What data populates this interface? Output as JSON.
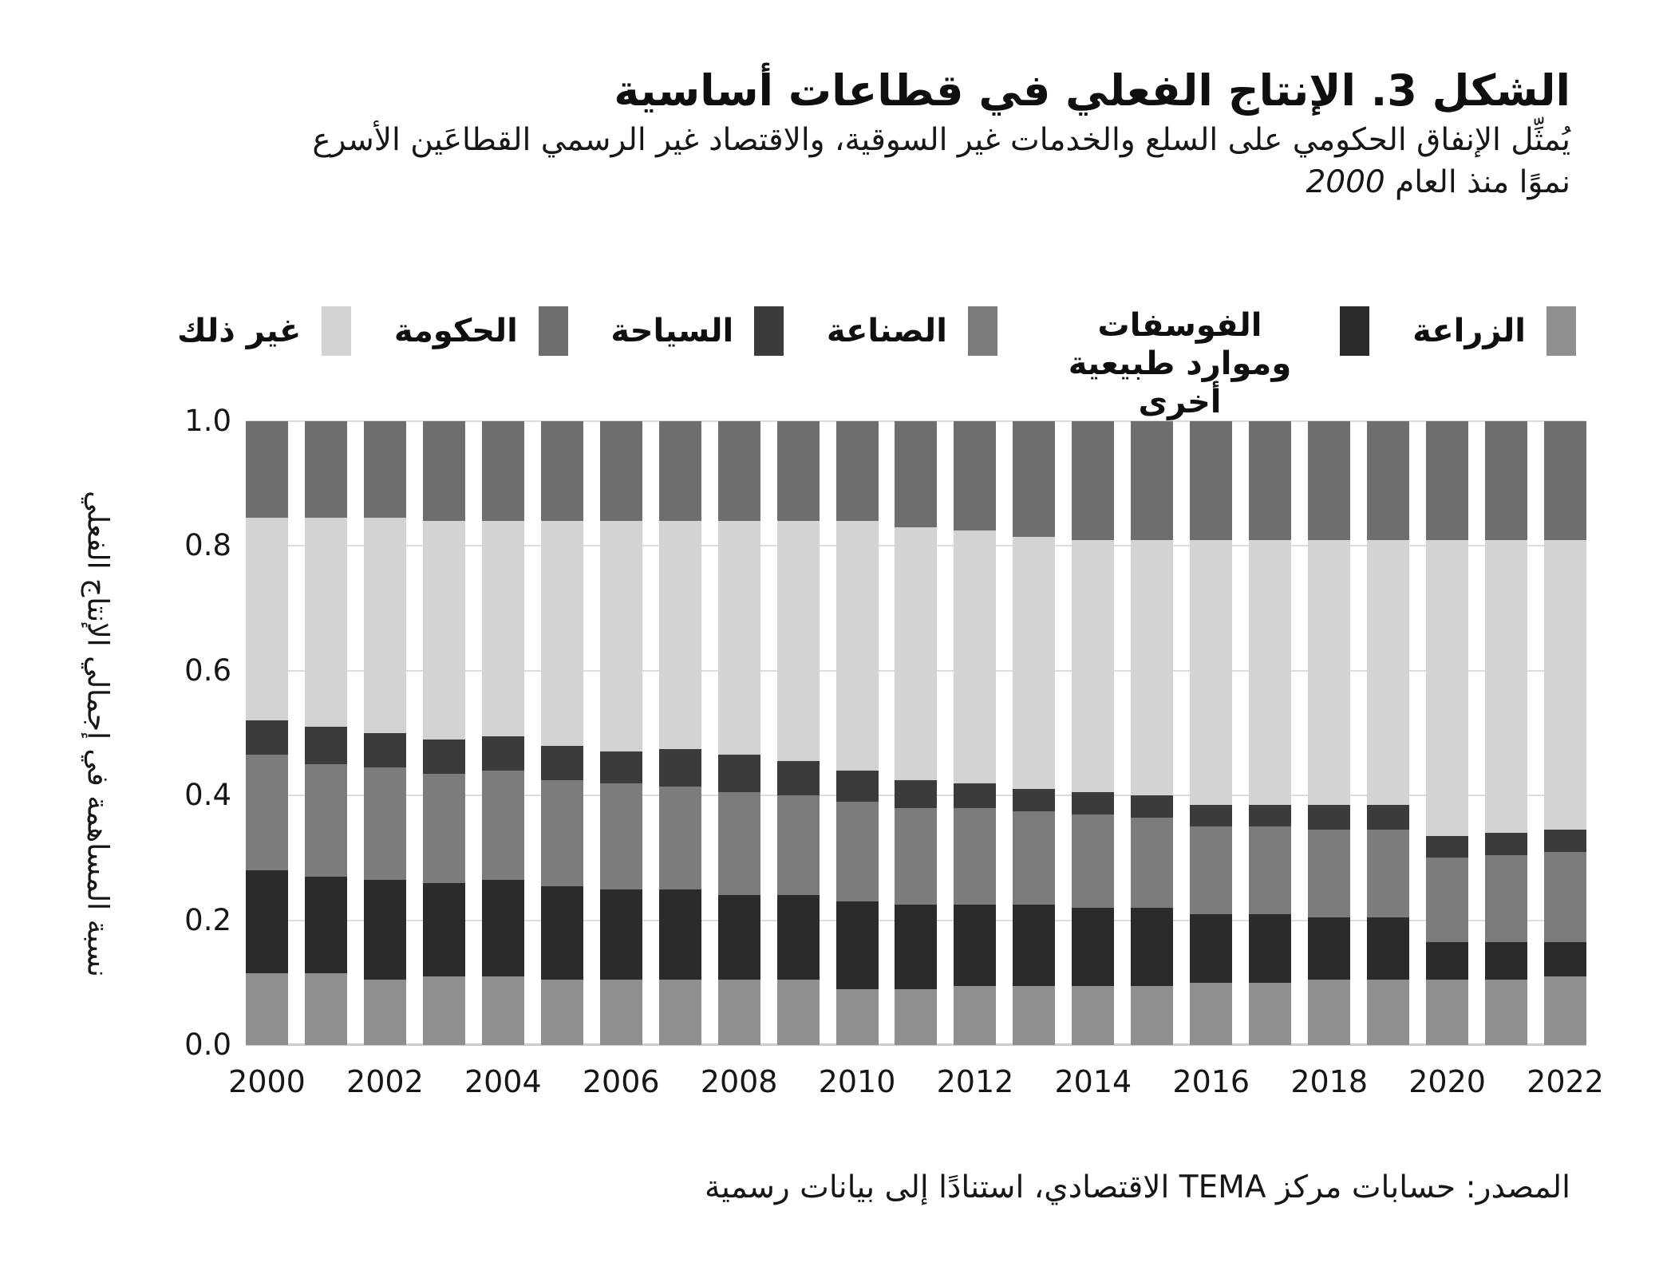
{
  "figure": {
    "title": "الشكل 3. الإنتاج الفعلي في قطاعات أساسية",
    "subtitle_line1": "يُمثِّل الإنفاق الحكومي على السلع والخدمات غير السوقية، والاقتصاد غير الرسمي القطاعَين الأسرع",
    "subtitle_line2": "نموًا منذ العام",
    "subtitle_year": "2000",
    "y_axis_label": "نسبة المساهمة في إجمالي الإنتاج الفعلي",
    "source": "المصدر: حسابات مركز TEMA الاقتصادي، استنادًا إلى بيانات رسمية",
    "background_color": "#ffffff",
    "gridline_color": "#dddddd"
  },
  "legend": [
    {
      "key": "agriculture",
      "label": "الزراعة",
      "color": "#8F8F8F",
      "multiline": false
    },
    {
      "key": "phosphates",
      "label": "الفوسفات وموارد طبيعية أخرى",
      "color": "#2B2B2B",
      "multiline": true
    },
    {
      "key": "industry",
      "label": "الصناعة",
      "color": "#7C7C7C",
      "multiline": false
    },
    {
      "key": "tourism",
      "label": "السياحة",
      "color": "#3B3B3B",
      "multiline": false
    },
    {
      "key": "government",
      "label": "الحكومة",
      "color": "#6E6E6E",
      "multiline": false
    },
    {
      "key": "other",
      "label": "غير ذلك",
      "color": "#D3D3D3",
      "multiline": false
    }
  ],
  "chart_data": {
    "type": "bar",
    "stacked": true,
    "title": "الشكل 3. الإنتاج الفعلي في قطاعات أساسية",
    "xlabel": "",
    "ylabel": "نسبة المساهمة في إجمالي الإنتاج الفعلي",
    "ylim": [
      0,
      1
    ],
    "grid": true,
    "legend_position": "top",
    "x": [
      2000,
      2001,
      2002,
      2003,
      2004,
      2005,
      2006,
      2007,
      2008,
      2009,
      2010,
      2011,
      2012,
      2013,
      2014,
      2015,
      2016,
      2017,
      2018,
      2019,
      2020,
      2021,
      2022
    ],
    "xtick_labels": [
      "2000",
      "2002",
      "2004",
      "2006",
      "2008",
      "2010",
      "2012",
      "2014",
      "2016",
      "2018",
      "2020",
      "2022"
    ],
    "yticks": [
      "0.0",
      "0.2",
      "0.4",
      "0.6",
      "0.8",
      "1.0"
    ],
    "ytick_values": [
      0,
      0.2,
      0.4,
      0.6,
      0.8,
      1.0
    ],
    "stack_order_bottom_to_top": [
      "الزراعة",
      "الفوسفات وموارد طبيعية أخرى",
      "الصناعة",
      "السياحة",
      "غير ذلك",
      "الحكومة"
    ],
    "series": [
      {
        "key": "agriculture",
        "name": "الزراعة",
        "color": "#8F8F8F",
        "values": [
          0.115,
          0.115,
          0.105,
          0.11,
          0.11,
          0.105,
          0.105,
          0.105,
          0.105,
          0.105,
          0.09,
          0.09,
          0.095,
          0.095,
          0.095,
          0.095,
          0.1,
          0.1,
          0.105,
          0.105,
          0.105,
          0.105,
          0.11
        ]
      },
      {
        "key": "phosphates",
        "name": "الفوسفات وموارد طبيعية أخرى",
        "color": "#2B2B2B",
        "values": [
          0.165,
          0.155,
          0.16,
          0.15,
          0.155,
          0.15,
          0.145,
          0.145,
          0.135,
          0.135,
          0.14,
          0.135,
          0.13,
          0.13,
          0.125,
          0.125,
          0.11,
          0.11,
          0.1,
          0.1,
          0.06,
          0.06,
          0.055
        ]
      },
      {
        "key": "industry",
        "name": "الصناعة",
        "color": "#7C7C7C",
        "values": [
          0.185,
          0.18,
          0.18,
          0.175,
          0.175,
          0.17,
          0.17,
          0.165,
          0.165,
          0.16,
          0.16,
          0.155,
          0.155,
          0.15,
          0.15,
          0.145,
          0.14,
          0.14,
          0.14,
          0.14,
          0.135,
          0.14,
          0.145
        ]
      },
      {
        "key": "tourism",
        "name": "السياحة",
        "color": "#3B3B3B",
        "values": [
          0.055,
          0.06,
          0.055,
          0.055,
          0.055,
          0.055,
          0.05,
          0.06,
          0.06,
          0.055,
          0.05,
          0.045,
          0.04,
          0.035,
          0.035,
          0.035,
          0.035,
          0.035,
          0.04,
          0.04,
          0.035,
          0.035,
          0.035
        ]
      },
      {
        "key": "other",
        "name": "غير ذلك",
        "color": "#D3D3D3",
        "values": [
          0.325,
          0.335,
          0.345,
          0.35,
          0.345,
          0.36,
          0.37,
          0.365,
          0.375,
          0.385,
          0.4,
          0.405,
          0.405,
          0.405,
          0.405,
          0.41,
          0.425,
          0.425,
          0.425,
          0.425,
          0.475,
          0.47,
          0.465
        ]
      },
      {
        "key": "government",
        "name": "الحكومة",
        "color": "#6E6E6E",
        "values": [
          0.155,
          0.155,
          0.155,
          0.16,
          0.16,
          0.16,
          0.16,
          0.16,
          0.16,
          0.16,
          0.16,
          0.17,
          0.175,
          0.185,
          0.19,
          0.19,
          0.19,
          0.19,
          0.19,
          0.19,
          0.19,
          0.19,
          0.19
        ]
      }
    ]
  }
}
